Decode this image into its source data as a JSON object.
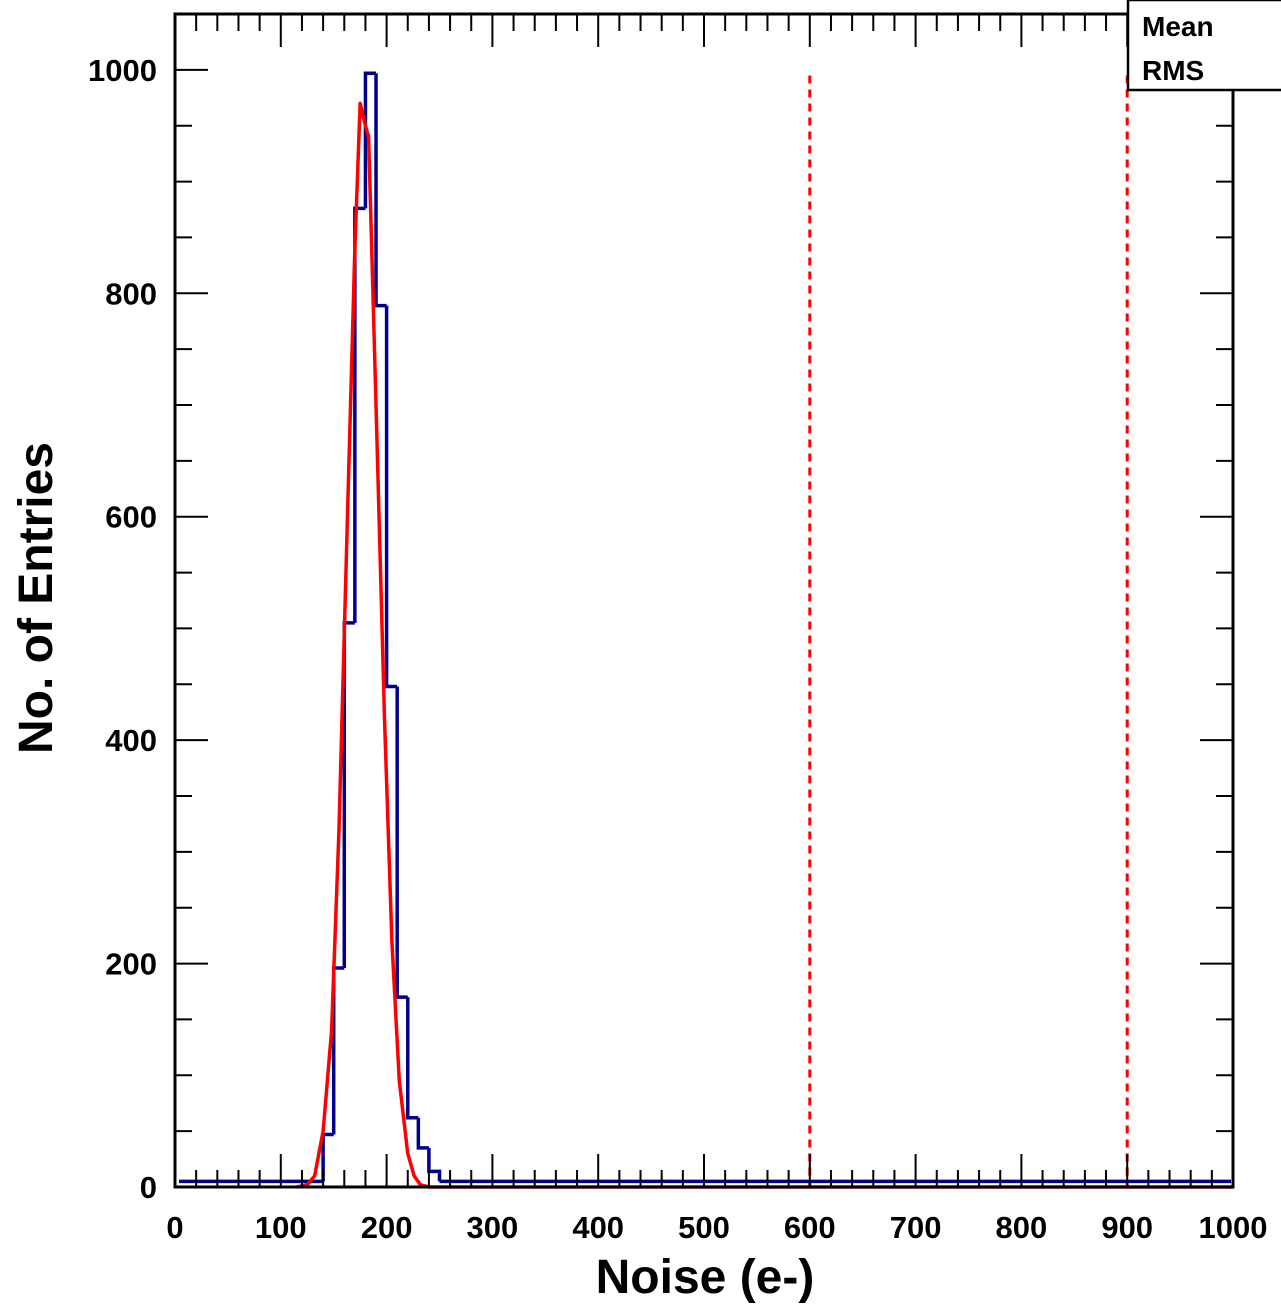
{
  "chart_data": {
    "type": "bar",
    "title": "",
    "xlabel": "Noise (e-)",
    "ylabel": "No. of Entries",
    "xlim": [
      0,
      1000
    ],
    "ylim": [
      0,
      1050
    ],
    "x_ticks": [
      0,
      100,
      200,
      300,
      400,
      500,
      600,
      700,
      800,
      900,
      1000
    ],
    "x_tick_labels": [
      "0",
      "100",
      "200",
      "300",
      "400",
      "500",
      "600",
      "700",
      "800",
      "900",
      "1000"
    ],
    "y_ticks": [
      0,
      200,
      400,
      600,
      800,
      1000
    ],
    "y_tick_labels": [
      "0",
      "200",
      "400",
      "600",
      "800",
      "1000"
    ],
    "grid": false,
    "stats_box": {
      "mean_label": "Mean",
      "rms_label": "RMS"
    },
    "series": [
      {
        "kind": "histogram",
        "color": "#00008b",
        "bin_width": 10,
        "baseline": 5,
        "bins": [
          {
            "x": 130,
            "value": 5
          },
          {
            "x": 140,
            "value": 47
          },
          {
            "x": 150,
            "value": 196
          },
          {
            "x": 160,
            "value": 505
          },
          {
            "x": 170,
            "value": 876
          },
          {
            "x": 180,
            "value": 997
          },
          {
            "x": 190,
            "value": 789
          },
          {
            "x": 200,
            "value": 448
          },
          {
            "x": 210,
            "value": 170
          },
          {
            "x": 220,
            "value": 62
          },
          {
            "x": 230,
            "value": 35
          },
          {
            "x": 240,
            "value": 14
          }
        ]
      },
      {
        "kind": "fit",
        "color": "#ff0000",
        "points": [
          [
            115,
            0
          ],
          [
            125,
            2
          ],
          [
            132,
            10
          ],
          [
            140,
            50
          ],
          [
            148,
            140
          ],
          [
            155,
            320
          ],
          [
            163,
            600
          ],
          [
            170,
            840
          ],
          [
            175,
            970
          ],
          [
            180,
            950
          ],
          [
            183,
            940
          ],
          [
            190,
            700
          ],
          [
            198,
            420
          ],
          [
            205,
            220
          ],
          [
            212,
            95
          ],
          [
            220,
            30
          ],
          [
            226,
            10
          ],
          [
            232,
            2
          ],
          [
            240,
            0
          ],
          [
            1000,
            0
          ]
        ]
      }
    ],
    "reference_lines": [
      {
        "x": 600,
        "color": "#ff0000",
        "style": "dashed"
      },
      {
        "x": 900,
        "color": "#ff0000",
        "style": "dashed"
      }
    ]
  }
}
